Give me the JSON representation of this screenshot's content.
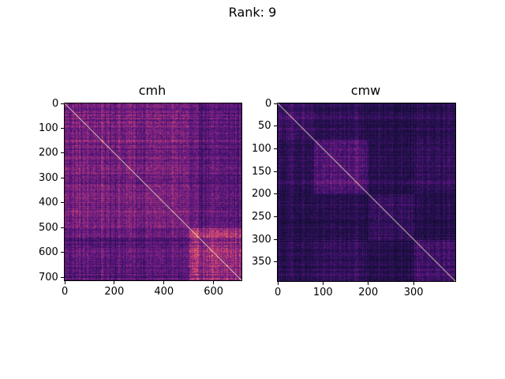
{
  "figure": {
    "suptitle": "Rank: 9"
  },
  "chart_data": [
    {
      "type": "heatmap",
      "title": "cmh",
      "colormap": "magma",
      "size": 712,
      "xlim": [
        0,
        712
      ],
      "ylim": [
        712,
        0
      ],
      "xticks": [
        0,
        200,
        400,
        600
      ],
      "yticks": [
        0,
        100,
        200,
        300,
        400,
        500,
        600,
        700
      ],
      "diagonal": "bright",
      "blocks": [
        {
          "start": 0,
          "end": 500,
          "level": 0.35
        },
        {
          "start": 500,
          "end": 712,
          "level": 0.42
        }
      ]
    },
    {
      "type": "heatmap",
      "title": "cmw",
      "colormap": "magma",
      "size": 392,
      "xlim": [
        0,
        392
      ],
      "ylim": [
        392,
        0
      ],
      "xticks": [
        0,
        100,
        200,
        300
      ],
      "yticks": [
        0,
        50,
        100,
        150,
        200,
        250,
        300,
        350
      ],
      "diagonal": "bright",
      "blocks": [
        {
          "start": 0,
          "end": 80,
          "level": 0.22
        },
        {
          "start": 80,
          "end": 200,
          "level": 0.26
        },
        {
          "start": 200,
          "end": 300,
          "level": 0.2
        },
        {
          "start": 300,
          "end": 392,
          "level": 0.24
        }
      ]
    }
  ]
}
